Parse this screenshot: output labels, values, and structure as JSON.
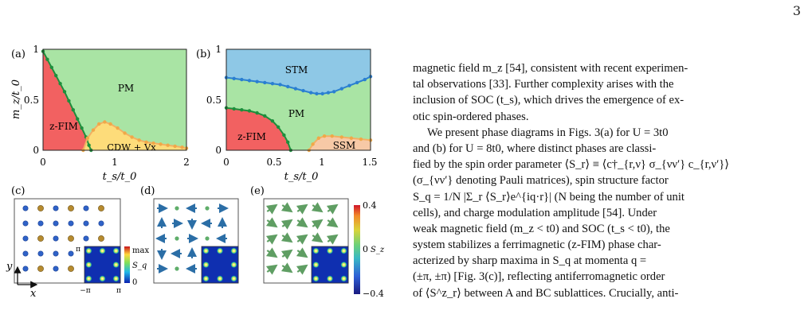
{
  "page": {
    "number": "3"
  },
  "figure": {
    "panel_labels": [
      "(a)",
      "(b)",
      "(c)",
      "(d)",
      "(e)"
    ],
    "colors": {
      "PM": "#a9e4a4",
      "z-FIM": "#f26161",
      "CDW": "#fddc7a",
      "STM": "#8ec8e6",
      "SSM": "#f7c9a6",
      "boundary_green": "#1d8f3c",
      "boundary_blue": "#2a7fd1",
      "boundary_orange": "#f3b063"
    },
    "chart_data": [
      {
        "type": "phase_diagram",
        "panel": "(a)",
        "xlabel": "t_s/t_0",
        "ylabel": "m_z/t_0",
        "xlim": [
          0,
          2
        ],
        "ylim": [
          0,
          1
        ],
        "xticks": [
          "0",
          "1",
          "2"
        ],
        "yticks": [
          "0",
          "0.5",
          "1"
        ],
        "regions": [
          "PM",
          "z-FIM",
          "CDW + Vx"
        ],
        "boundaries": {
          "z-FIM|PM": [
            [
              0.0,
              0.98
            ],
            [
              0.06,
              0.9
            ],
            [
              0.12,
              0.82
            ],
            [
              0.18,
              0.74
            ],
            [
              0.24,
              0.66
            ],
            [
              0.3,
              0.58
            ],
            [
              0.36,
              0.49
            ],
            [
              0.42,
              0.4
            ],
            [
              0.48,
              0.31
            ],
            [
              0.54,
              0.22
            ],
            [
              0.6,
              0.13
            ],
            [
              0.64,
              0.05
            ],
            [
              0.67,
              0.0
            ]
          ],
          "CDW": [
            [
              0.56,
              0.0
            ],
            [
              0.62,
              0.12
            ],
            [
              0.7,
              0.2
            ],
            [
              0.78,
              0.26
            ],
            [
              0.86,
              0.28
            ],
            [
              0.94,
              0.26
            ],
            [
              1.04,
              0.22
            ],
            [
              1.14,
              0.17
            ],
            [
              1.24,
              0.13
            ],
            [
              1.34,
              0.1
            ],
            [
              1.44,
              0.08
            ],
            [
              1.54,
              0.07
            ],
            [
              1.64,
              0.06
            ],
            [
              1.74,
              0.05
            ],
            [
              1.84,
              0.04
            ],
            [
              1.94,
              0.03
            ],
            [
              2.0,
              0.02
            ]
          ]
        }
      },
      {
        "type": "phase_diagram",
        "panel": "(b)",
        "xlabel": "t_s/t_0",
        "ylabel": "",
        "xlim": [
          0,
          1.5
        ],
        "ylim": [
          0,
          1
        ],
        "xticks": [
          "0",
          "0.5",
          "1",
          "1.5"
        ],
        "yticks": [
          "0",
          "0.5",
          "1"
        ],
        "regions": [
          "STM",
          "PM",
          "z-FIM",
          "SSM"
        ],
        "boundaries": {
          "STM|PM": [
            [
              0.0,
              0.72
            ],
            [
              0.08,
              0.71
            ],
            [
              0.16,
              0.7
            ],
            [
              0.24,
              0.69
            ],
            [
              0.32,
              0.68
            ],
            [
              0.4,
              0.67
            ],
            [
              0.48,
              0.66
            ],
            [
              0.56,
              0.65
            ],
            [
              0.64,
              0.63
            ],
            [
              0.72,
              0.61
            ],
            [
              0.8,
              0.59
            ],
            [
              0.88,
              0.57
            ],
            [
              0.94,
              0.56
            ],
            [
              1.0,
              0.56
            ],
            [
              1.06,
              0.57
            ],
            [
              1.12,
              0.58
            ],
            [
              1.2,
              0.61
            ],
            [
              1.28,
              0.64
            ],
            [
              1.36,
              0.67
            ],
            [
              1.44,
              0.7
            ],
            [
              1.5,
              0.73
            ]
          ],
          "z-FIM|PM": [
            [
              0.0,
              0.42
            ],
            [
              0.08,
              0.41
            ],
            [
              0.16,
              0.4
            ],
            [
              0.24,
              0.39
            ],
            [
              0.32,
              0.37
            ],
            [
              0.4,
              0.34
            ],
            [
              0.48,
              0.29
            ],
            [
              0.54,
              0.23
            ],
            [
              0.6,
              0.15
            ],
            [
              0.64,
              0.08
            ],
            [
              0.67,
              0.0
            ]
          ],
          "SSM": [
            [
              0.86,
              0.0
            ],
            [
              0.9,
              0.06
            ],
            [
              0.96,
              0.12
            ],
            [
              1.02,
              0.14
            ],
            [
              1.1,
              0.14
            ],
            [
              1.2,
              0.13
            ],
            [
              1.3,
              0.12
            ],
            [
              1.4,
              0.11
            ],
            [
              1.5,
              0.1
            ]
          ]
        }
      }
    ],
    "panel_c": {
      "y_axis": "y",
      "x_axis": "x",
      "inset_ticks": [
        "π",
        "−π",
        "π"
      ],
      "colorbar": {
        "max_label": "max",
        "min_label": "0",
        "quantity": "S_q"
      }
    },
    "panel_e": {
      "colorbar": {
        "ticks": [
          "0.4",
          "0",
          "−0.4"
        ],
        "quantity": "S_z"
      }
    }
  },
  "body_text": {
    "lines": [
      {
        "text": "magnetic field m_z [54], consistent with recent experimen-",
        "indent": false
      },
      {
        "text": "tal observations [33]. Further complexity arises with the",
        "indent": false
      },
      {
        "text": "inclusion of SOC (t_s), which drives the emergence of ex-",
        "indent": false
      },
      {
        "text": "otic spin-ordered phases.",
        "indent": false
      },
      {
        "text": "We present phase diagrams in Figs. 3(a) for U = 3t0",
        "indent": true
      },
      {
        "text": "and (b) for U = 8t0, where distinct phases are classi-",
        "indent": false
      },
      {
        "text": "fied by the spin order parameter ⟨S_r⟩ ≡ ⟨c†_{r,ν} σ_{νν′} c_{r,ν′}⟩",
        "indent": false
      },
      {
        "text": "(σ_{νν′} denoting Pauli matrices), spin structure factor",
        "indent": false
      },
      {
        "text": "S_q = 1/N |Σ_r ⟨S_r⟩e^{iq·r}| (N being the number of unit",
        "indent": false
      },
      {
        "text": "cells), and charge modulation amplitude [54]. Under",
        "indent": false
      },
      {
        "text": "weak magnetic field (m_z < t0) and SOC (t_s < t0), the",
        "indent": false
      },
      {
        "text": "system stabilizes a ferrimagnetic (z-FIM) phase char-",
        "indent": false
      },
      {
        "text": "acterized by sharp maxima in S_q at momenta q =",
        "indent": false
      },
      {
        "text": "(±π, ±π) [Fig. 3(c)], reflecting antiferromagnetic order",
        "indent": false
      },
      {
        "text": "of ⟨S^z_r⟩ between A and BC sublattices. Crucially, anti-",
        "indent": false
      }
    ]
  }
}
